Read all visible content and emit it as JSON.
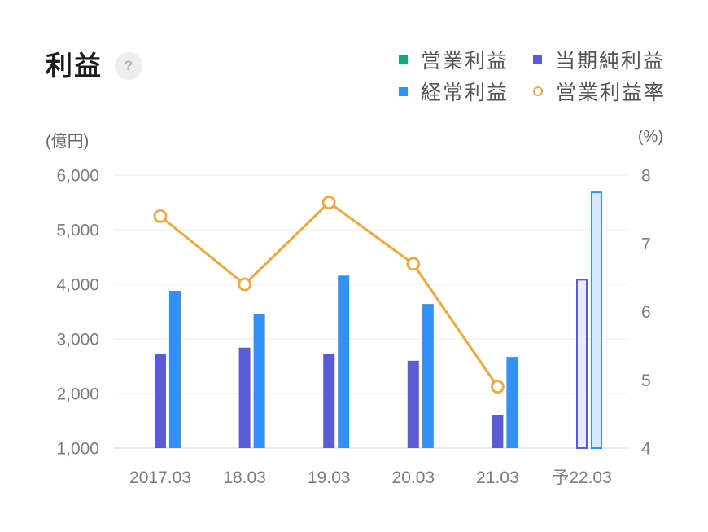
{
  "header": {
    "title": "利益",
    "help": "?"
  },
  "chart_data": {
    "type": "bar",
    "categories": [
      "2017.03",
      "18.03",
      "19.03",
      "20.03",
      "21.03",
      "予22.03"
    ],
    "forecast": [
      false,
      false,
      false,
      false,
      false,
      true
    ],
    "y_axis": {
      "label": "(億円)",
      "range": [
        1000,
        6000
      ],
      "ticks": [
        6000,
        5000,
        4000,
        3000,
        2000,
        1000
      ],
      "tick_labels": [
        "6,000",
        "5,000",
        "4,000",
        "3,000",
        "2,000",
        "1,000"
      ]
    },
    "y2_axis": {
      "label": "(%)",
      "range": [
        4,
        8
      ],
      "ticks": [
        8,
        7,
        6,
        5,
        4
      ],
      "tick_labels": [
        "8",
        "7",
        "6",
        "5",
        "4"
      ]
    },
    "series": [
      {
        "name": "営業利益",
        "type": "bar",
        "axis": "left",
        "marker": "square",
        "color": "#1ba37e",
        "forecast_color": "#dff3ec",
        "values": [
          null,
          null,
          null,
          null,
          null,
          null
        ]
      },
      {
        "name": "当期純利益",
        "type": "bar",
        "axis": "left",
        "marker": "square",
        "color": "#5b5bd6",
        "forecast_color": "#ecebfb",
        "values": [
          2730,
          2840,
          2730,
          2600,
          1610,
          4100
        ]
      },
      {
        "name": "経常利益",
        "type": "bar",
        "axis": "left",
        "marker": "square",
        "color": "#3390f5",
        "forecast_color": "#d9eafe",
        "values": [
          3880,
          3450,
          4160,
          3640,
          2670,
          5700
        ]
      },
      {
        "name": "営業利益率",
        "type": "line",
        "axis": "right",
        "marker": "circle",
        "color": "#f2a73b",
        "values": [
          7.4,
          6.4,
          7.6,
          6.7,
          4.9,
          null
        ]
      }
    ],
    "grid": true,
    "legend": "top-right"
  }
}
